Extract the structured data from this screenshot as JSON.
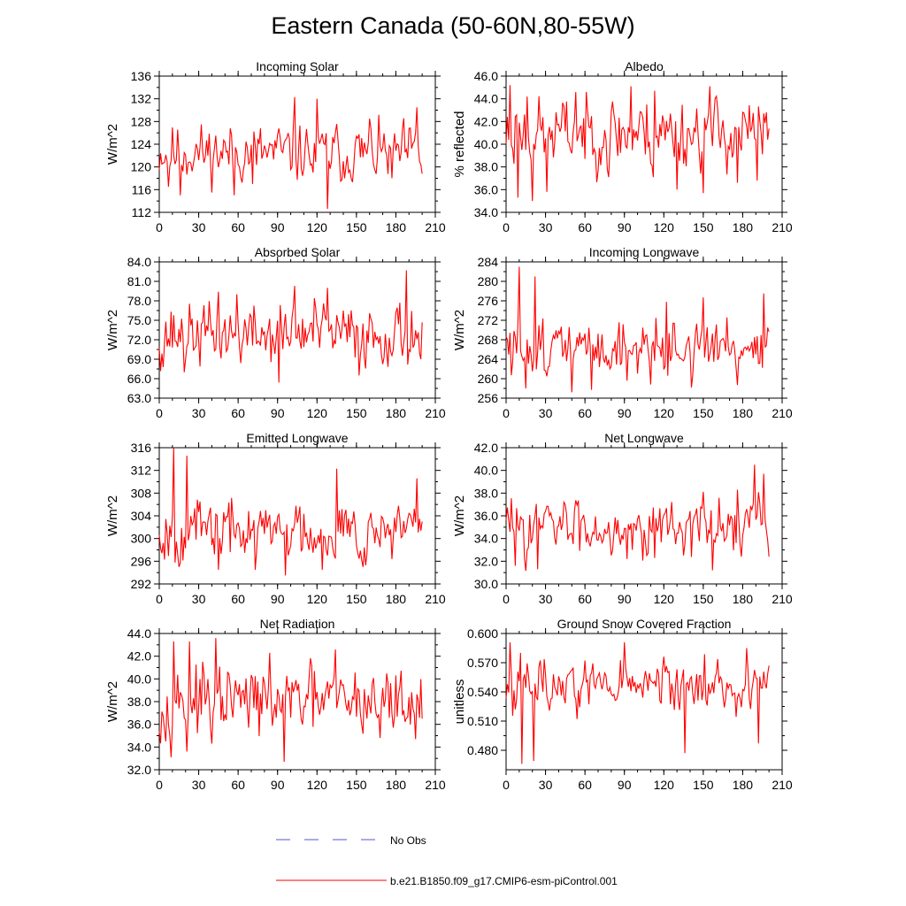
{
  "title": "Eastern Canada (50-60N,80-55W)",
  "colors": {
    "series": "#ff0000",
    "obs": "#5555cc",
    "axis": "#000000"
  },
  "legend": {
    "obs_label": "No Obs",
    "model_label": "b.e21.B1850.f09_g17.CMIP6-esm-piControl.001"
  },
  "chart_data": [
    {
      "type": "line",
      "title": "Incoming Solar",
      "ylabel": "W/m^2",
      "xlim": [
        0,
        210
      ],
      "xticks": [
        "0",
        "30",
        "60",
        "90",
        "120",
        "150",
        "180",
        "210"
      ],
      "ylim": [
        112,
        136
      ],
      "yticks": [
        "112",
        "116",
        "120",
        "124",
        "128",
        "132",
        "136"
      ],
      "seed": 11,
      "mean": 122.5,
      "amp": 3.2,
      "points": [
        [
          2,
          120.5
        ],
        [
          7,
          116.5
        ],
        [
          16,
          115
        ],
        [
          57,
          115
        ],
        [
          71,
          117
        ],
        [
          103,
          132.3
        ],
        [
          117,
          119
        ],
        [
          120,
          132
        ],
        [
          128,
          112.6
        ],
        [
          141,
          118
        ],
        [
          160,
          128.5
        ],
        [
          177,
          118
        ],
        [
          196,
          130.5
        ],
        [
          200,
          118.8
        ]
      ]
    },
    {
      "type": "line",
      "title": "Albedo",
      "ylabel": "% reflected",
      "xlim": [
        0,
        210
      ],
      "xticks": [
        "0",
        "30",
        "60",
        "90",
        "120",
        "150",
        "180",
        "210"
      ],
      "ylim": [
        34,
        46
      ],
      "yticks": [
        "34.0",
        "36.0",
        "38.0",
        "40.0",
        "42.0",
        "44.0",
        "46.0"
      ],
      "seed": 23,
      "mean": 41.0,
      "amp": 2.0,
      "points": [
        [
          3,
          45.2
        ],
        [
          9,
          35.3
        ],
        [
          16,
          44.2
        ],
        [
          20,
          35
        ],
        [
          31,
          35.8
        ],
        [
          53,
          44.6
        ],
        [
          78,
          37.1
        ],
        [
          95,
          45.1
        ],
        [
          112,
          37.1
        ],
        [
          113,
          44.7
        ],
        [
          130,
          36
        ],
        [
          150,
          35.7
        ],
        [
          155,
          45.1
        ],
        [
          176,
          36.6
        ],
        [
          191,
          36.8
        ],
        [
          198,
          42.8
        ]
      ]
    },
    {
      "type": "line",
      "title": "Absorbed Solar",
      "ylabel": "W/m^2",
      "xlim": [
        0,
        210
      ],
      "xticks": [
        "0",
        "30",
        "60",
        "90",
        "120",
        "150",
        "180",
        "210"
      ],
      "ylim": [
        63,
        84
      ],
      "yticks": [
        "63.0",
        "66.0",
        "69.0",
        "72.0",
        "75.0",
        "78.0",
        "81.0",
        "84.0"
      ],
      "seed": 37,
      "mean": 72.8,
      "amp": 3.0,
      "points": [
        [
          3,
          67.8
        ],
        [
          19,
          67
        ],
        [
          45,
          79.4
        ],
        [
          59,
          79
        ],
        [
          91,
          65.4
        ],
        [
          103,
          80.3
        ],
        [
          118,
          78.4
        ],
        [
          128,
          80
        ],
        [
          152,
          66.5
        ],
        [
          188,
          82.7
        ],
        [
          199,
          69
        ]
      ]
    },
    {
      "type": "line",
      "title": "Incoming Longwave",
      "ylabel": "W/m^2",
      "xlim": [
        0,
        210
      ],
      "xticks": [
        "0",
        "30",
        "60",
        "90",
        "120",
        "150",
        "180",
        "210"
      ],
      "ylim": [
        256,
        284
      ],
      "yticks": [
        "256",
        "260",
        "264",
        "268",
        "272",
        "276",
        "280",
        "284"
      ],
      "seed": 51,
      "mean": 266.5,
      "amp": 3.6,
      "points": [
        [
          4,
          260.7
        ],
        [
          8,
          265.2
        ],
        [
          10,
          283
        ],
        [
          15,
          258
        ],
        [
          19,
          265
        ],
        [
          22,
          281
        ],
        [
          50,
          257.2
        ],
        [
          65,
          257.7
        ],
        [
          92,
          259.6
        ],
        [
          122,
          275.8
        ],
        [
          141,
          258.2
        ],
        [
          150,
          276.7
        ],
        [
          176,
          258.7
        ],
        [
          196,
          277.5
        ],
        [
          199,
          270.5
        ]
      ]
    },
    {
      "type": "line",
      "title": "Emitted Longwave",
      "ylabel": "W/m^2",
      "xlim": [
        0,
        210
      ],
      "xticks": [
        "0",
        "30",
        "60",
        "90",
        "120",
        "150",
        "180",
        "210"
      ],
      "ylim": [
        292,
        316
      ],
      "yticks": [
        "292",
        "296",
        "300",
        "304",
        "308",
        "312",
        "316"
      ],
      "seed": 67,
      "mean": 301.5,
      "amp": 3.3,
      "points": [
        [
          4,
          296.3
        ],
        [
          11,
          316
        ],
        [
          15,
          295
        ],
        [
          21,
          314.6
        ],
        [
          45,
          294.5
        ],
        [
          73,
          294.5
        ],
        [
          96,
          293.5
        ],
        [
          124,
          294.5
        ],
        [
          135,
          312.3
        ],
        [
          155,
          295
        ],
        [
          196,
          310.6
        ],
        [
          200,
          303
        ]
      ]
    },
    {
      "type": "line",
      "title": "Net Longwave",
      "ylabel": "W/m^2",
      "xlim": [
        0,
        210
      ],
      "xticks": [
        "0",
        "30",
        "60",
        "90",
        "120",
        "150",
        "180",
        "210"
      ],
      "ylim": [
        30,
        42
      ],
      "yticks": [
        "30.0",
        "32.0",
        "34.0",
        "36.0",
        "38.0",
        "40.0",
        "42.0"
      ],
      "seed": 83,
      "mean": 35.1,
      "amp": 1.6,
      "points": [
        [
          3,
          34.6
        ],
        [
          7,
          31.6
        ],
        [
          24,
          31.3
        ],
        [
          92,
          32.2
        ],
        [
          157,
          31.2
        ],
        [
          176,
          38.3
        ],
        [
          189,
          40.5
        ],
        [
          196,
          39.7
        ],
        [
          200,
          32.4
        ]
      ]
    },
    {
      "type": "line",
      "title": "Net Radiation",
      "ylabel": "W/m^2",
      "xlim": [
        0,
        210
      ],
      "xticks": [
        "0",
        "30",
        "60",
        "90",
        "120",
        "150",
        "180",
        "210"
      ],
      "ylim": [
        32,
        44
      ],
      "yticks": [
        "32.0",
        "34.0",
        "36.0",
        "38.0",
        "40.0",
        "42.0",
        "44.0"
      ],
      "seed": 97,
      "mean": 38.0,
      "amp": 1.9,
      "points": [
        [
          5,
          34.5
        ],
        [
          11,
          43.3
        ],
        [
          21,
          33.6
        ],
        [
          23,
          43.3
        ],
        [
          40,
          34.3
        ],
        [
          43,
          43.6
        ],
        [
          95,
          32.7
        ],
        [
          134,
          42.6
        ],
        [
          168,
          34.8
        ],
        [
          195,
          34.7
        ],
        [
          200,
          36.5
        ]
      ]
    },
    {
      "type": "line",
      "title": "Ground Snow Covered Fraction",
      "ylabel": "unitless",
      "xlim": [
        0,
        210
      ],
      "xticks": [
        "0",
        "30",
        "60",
        "90",
        "120",
        "150",
        "180",
        "210"
      ],
      "ylim": [
        0.46,
        0.6
      ],
      "yticks": [
        "0.480",
        "0.510",
        "0.540",
        "0.570",
        "0.600"
      ],
      "seed": 113,
      "mean": 0.547,
      "amp": 0.018,
      "points": [
        [
          3,
          0.591
        ],
        [
          12,
          0.466
        ],
        [
          21,
          0.469
        ],
        [
          90,
          0.591
        ],
        [
          136,
          0.477
        ],
        [
          183,
          0.585
        ],
        [
          192,
          0.487
        ],
        [
          200,
          0.567
        ]
      ]
    }
  ]
}
